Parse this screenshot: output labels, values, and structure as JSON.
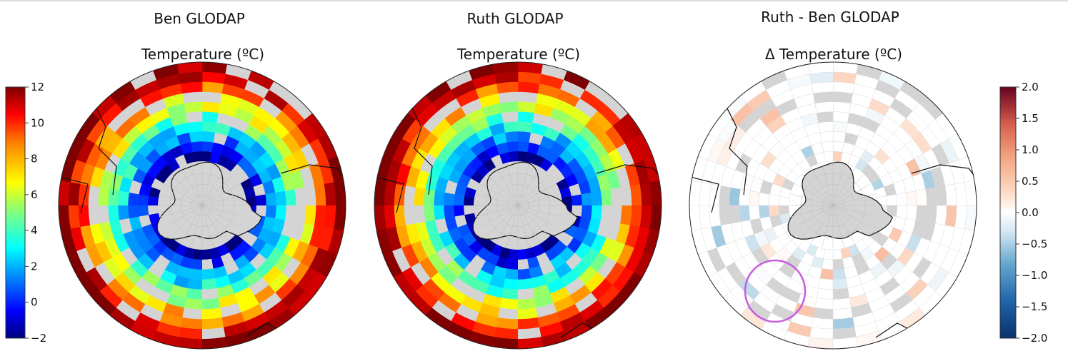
{
  "panels": [
    {
      "id": "ben",
      "title": "Ben GLODAP",
      "subtitle": "Temperature (ºC)"
    },
    {
      "id": "ruth",
      "title": "Ruth GLODAP",
      "subtitle": "Temperature (ºC)"
    },
    {
      "id": "diff",
      "title": "Ruth - Ben GLODAP",
      "subtitle": "Δ Temperature (ºC)"
    }
  ],
  "colors": {
    "land_gray": "#d4d4d4",
    "coast": "#111111",
    "highlight_circle": "#c85be0",
    "jet": [
      "#00007f",
      "#0000ff",
      "#007fff",
      "#00ffff",
      "#7fff7f",
      "#ffff00",
      "#ff7f00",
      "#ff0000",
      "#7f0000"
    ],
    "rdbu_r": [
      "#08306b",
      "#2166ac",
      "#67a9cf",
      "#d1e5f0",
      "#ffffff",
      "#fddbc7",
      "#f4a582",
      "#d6604d",
      "#67001f"
    ]
  },
  "chart_data": [
    {
      "type": "heatmap",
      "projection": "south-polar-stereographic",
      "title": "Ben GLODAP",
      "subtitle": "Temperature (ºC)",
      "colorbar": {
        "min": -2,
        "max": 12,
        "ticks": [
          "12",
          "10",
          "8",
          "6",
          "4",
          "2",
          "0",
          "−2"
        ],
        "colormap": "jet"
      }
    },
    {
      "type": "heatmap",
      "projection": "south-polar-stereographic",
      "title": "Ruth GLODAP",
      "subtitle": "Temperature (ºC)",
      "colorbar": null
    },
    {
      "type": "heatmap",
      "projection": "south-polar-stereographic",
      "title": "Ruth - Ben GLODAP",
      "subtitle": "Δ Temperature (ºC)",
      "colorbar": {
        "min": -2.0,
        "max": 2.0,
        "ticks": [
          "2.0",
          "1.5",
          "1.0",
          "0.5",
          "0.0",
          "−0.5",
          "−1.0",
          "−1.5",
          "−2.0"
        ],
        "colormap": "RdBu_r"
      },
      "annotation": "circle-highlight"
    }
  ]
}
